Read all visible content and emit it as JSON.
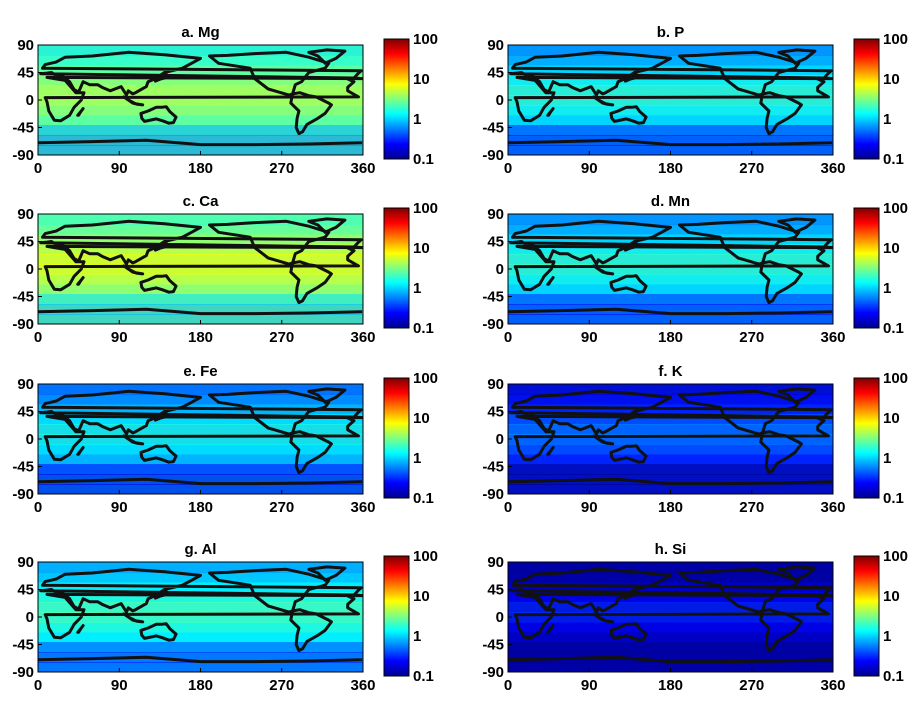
{
  "figure": {
    "colorbar_ticks": [
      "100",
      "10",
      "1",
      "0.1"
    ],
    "colorbar_scale": "log",
    "colorbar_range": [
      0.1,
      100
    ],
    "colormap": [
      "#00008f",
      "#0000ff",
      "#0080ff",
      "#00ffff",
      "#80ff80",
      "#ffff00",
      "#ff8000",
      "#ff0000",
      "#800000"
    ],
    "coastline_color": "#111111"
  },
  "chart_data": [
    {
      "type": "heatmap",
      "title": "a. Mg",
      "xlim": [
        0,
        360
      ],
      "ylim": [
        -90,
        90
      ],
      "x_ticks": [
        "0",
        "90",
        "180",
        "270",
        "360"
      ],
      "y_ticks": [
        "90",
        "45",
        "0",
        "-45",
        "-90"
      ],
      "colorbar": {
        "scale": "log",
        "range": [
          0.1,
          100
        ],
        "ticks": [
          "100",
          "10",
          "1",
          "0.1"
        ]
      },
      "typical_level": 2.5
    },
    {
      "type": "heatmap",
      "title": "b.  P",
      "xlim": [
        0,
        360
      ],
      "ylim": [
        -90,
        90
      ],
      "x_ticks": [
        "0",
        "90",
        "180",
        "270",
        "360"
      ],
      "y_ticks": [
        "90",
        "45",
        "0",
        "-45",
        "-90"
      ],
      "colorbar": {
        "scale": "log",
        "range": [
          0.1,
          100
        ],
        "ticks": [
          "100",
          "10",
          "1",
          "0.1"
        ]
      },
      "typical_level": 1.0
    },
    {
      "type": "heatmap",
      "title": "c. Ca",
      "xlim": [
        0,
        360
      ],
      "ylim": [
        -90,
        90
      ],
      "x_ticks": [
        "0",
        "90",
        "180",
        "270",
        "360"
      ],
      "y_ticks": [
        "90",
        "45",
        "0",
        "-45",
        "-90"
      ],
      "colorbar": {
        "scale": "log",
        "range": [
          0.1,
          100
        ],
        "ticks": [
          "100",
          "10",
          "1",
          "0.1"
        ]
      },
      "typical_level": 3.5
    },
    {
      "type": "heatmap",
      "title": "d. Mn",
      "xlim": [
        0,
        360
      ],
      "ylim": [
        -90,
        90
      ],
      "x_ticks": [
        "0",
        "90",
        "180",
        "270",
        "360"
      ],
      "y_ticks": [
        "90",
        "45",
        "0",
        "-45",
        "-90"
      ],
      "colorbar": {
        "scale": "log",
        "range": [
          0.1,
          100
        ],
        "ticks": [
          "100",
          "10",
          "1",
          "0.1"
        ]
      },
      "typical_level": 1.0
    },
    {
      "type": "heatmap",
      "title": "e. Fe",
      "xlim": [
        0,
        360
      ],
      "ylim": [
        -90,
        90
      ],
      "x_ticks": [
        "0",
        "90",
        "180",
        "270",
        "360"
      ],
      "y_ticks": [
        "90",
        "45",
        "0",
        "-45",
        "-90"
      ],
      "colorbar": {
        "scale": "log",
        "range": [
          0.1,
          100
        ],
        "ticks": [
          "100",
          "10",
          "1",
          "0.1"
        ]
      },
      "typical_level": 0.8
    },
    {
      "type": "heatmap",
      "title": "f.  K",
      "xlim": [
        0,
        360
      ],
      "ylim": [
        -90,
        90
      ],
      "x_ticks": [
        "0",
        "90",
        "180",
        "270",
        "360"
      ],
      "y_ticks": [
        "90",
        "45",
        "0",
        "-45",
        "-90"
      ],
      "colorbar": {
        "scale": "log",
        "range": [
          0.1,
          100
        ],
        "ticks": [
          "100",
          "10",
          "1",
          "0.1"
        ]
      },
      "typical_level": 0.3
    },
    {
      "type": "heatmap",
      "title": "g. Al",
      "xlim": [
        0,
        360
      ],
      "ylim": [
        -90,
        90
      ],
      "x_ticks": [
        "0",
        "90",
        "180",
        "270",
        "360"
      ],
      "y_ticks": [
        "90",
        "45",
        "0",
        "-45",
        "-90"
      ],
      "colorbar": {
        "scale": "log",
        "range": [
          0.1,
          100
        ],
        "ticks": [
          "100",
          "10",
          "1",
          "0.1"
        ]
      },
      "typical_level": 1.2
    },
    {
      "type": "heatmap",
      "title": "h. Si",
      "xlim": [
        0,
        360
      ],
      "ylim": [
        -90,
        90
      ],
      "x_ticks": [
        "0",
        "90",
        "180",
        "270",
        "360"
      ],
      "y_ticks": [
        "90",
        "45",
        "0",
        "-45",
        "-90"
      ],
      "colorbar": {
        "scale": "log",
        "range": [
          0.1,
          100
        ],
        "ticks": [
          "100",
          "10",
          "1",
          "0.1"
        ]
      },
      "typical_level": 0.15
    }
  ]
}
